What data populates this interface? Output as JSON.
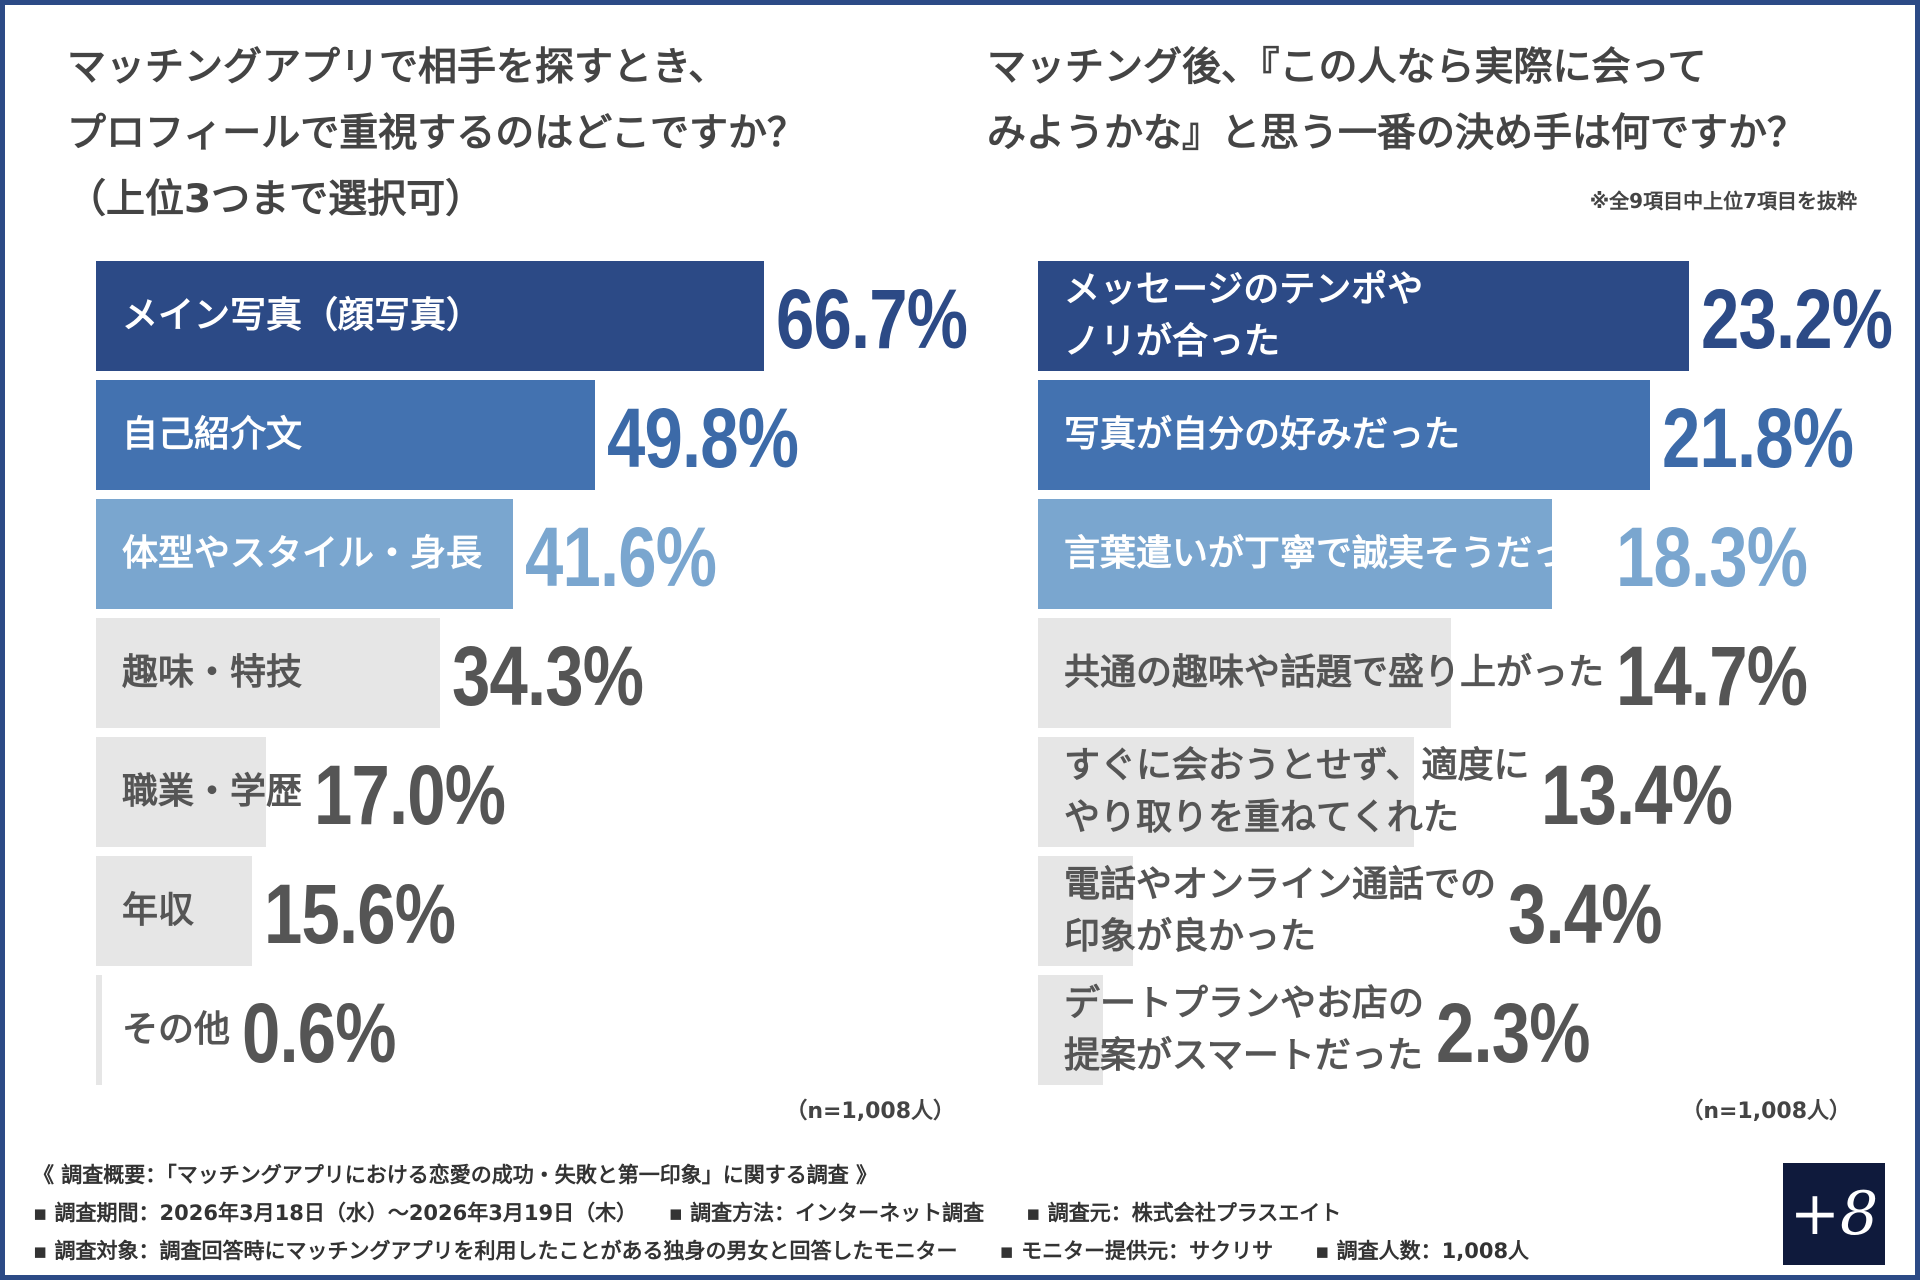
{
  "chart_data": [
    {
      "type": "bar",
      "orientation": "horizontal",
      "title": "マッチングアプリで相手を探すとき、\nプロフィールで重視するのはどこですか？\n（上位3つまで選択可）",
      "unit": "%",
      "categories": [
        "メイン写真（顔写真）",
        "自己紹介文",
        "体型やスタイル・身長",
        "趣味・特技",
        "職業・学歴",
        "年収",
        "その他"
      ],
      "values": [
        66.7,
        49.8,
        41.6,
        34.3,
        17.0,
        15.6,
        0.6
      ],
      "value_labels": [
        "66.7%",
        "49.8%",
        "41.6%",
        "34.3%",
        "17.0%",
        "15.6%",
        "0.6%"
      ],
      "sample": "（n=1,008人）"
    },
    {
      "type": "bar",
      "orientation": "horizontal",
      "title": "マッチング後、『この人なら実際に会って\nみようかな』と思う一番の決め手は何ですか？",
      "note": "※全9項目中上位7項目を抜粋",
      "unit": "%",
      "categories": [
        "メッセージのテンポや\nノリが合った",
        "写真が自分の好みだった",
        "言葉遣いが丁寧で誠実そうだった",
        "共通の趣味や話題で盛り上がった",
        "すぐに会おうとせず、適度に\nやり取りを重ねてくれた",
        "電話やオンライン通話での\n印象が良かった",
        "デートプランやお店の\n提案がスマートだった"
      ],
      "values": [
        23.2,
        21.8,
        18.3,
        14.7,
        13.4,
        3.4,
        2.3
      ],
      "value_labels": [
        "23.2%",
        "21.8%",
        "18.3%",
        "14.7%",
        "13.4%",
        "3.4%",
        "2.3%"
      ],
      "sample": "（n=1,008人）"
    }
  ],
  "colors": {
    "rank1": "#2c4a86",
    "rank2": "#4372b0",
    "rank3": "#7aa6cf",
    "other": "#e6e6e6",
    "rank1_text": "#2c4a86",
    "rank2_text": "#3c6aa8",
    "rank3_text": "#7aa6cf",
    "other_text": "#555555"
  },
  "footer": {
    "summary": "《 調査概要：「マッチングアプリにおける恋愛の成功・失敗と第一印象」に関する調査 》",
    "line1": "▪ 調査期間：2026年3月18日（水）～2026年3月19日（木）　　▪ 調査方法：インターネット調査　　▪ 調査元：株式会社プラスエイト",
    "line2": "▪ 調査対象：調査回答時にマッチングアプリを利用したことがある独身の男女と回答したモニター　　▪ モニター提供元：サクリサ　　▪ 調査人数：1,008人",
    "logo": "+8"
  }
}
